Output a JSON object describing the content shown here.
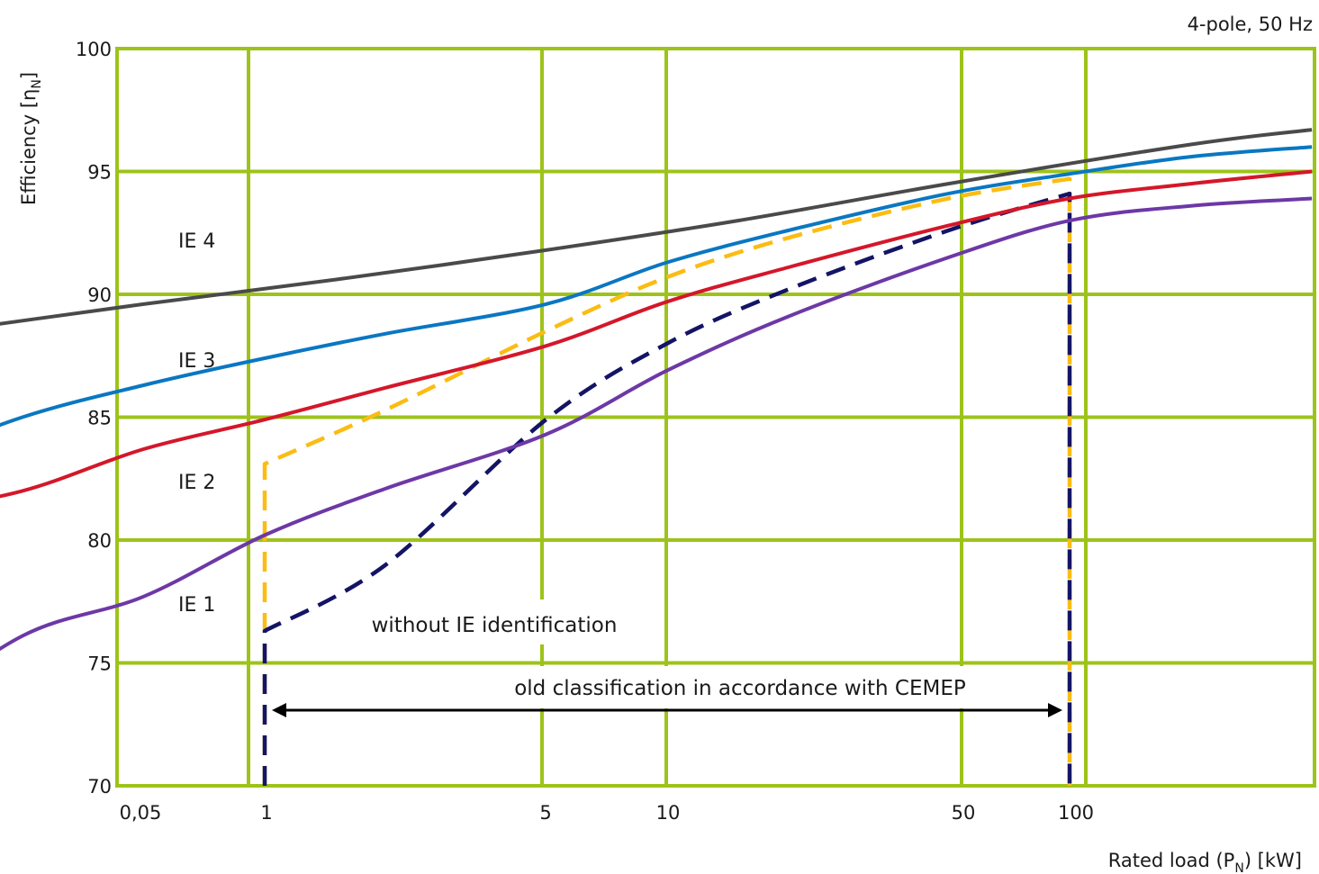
{
  "chart_data": {
    "type": "line",
    "subtitle": "4-pole, 50 Hz",
    "ylabel_main": "Efficiency [η",
    "ylabel_sub": "N",
    "ylabel_end": "]",
    "xlabel_main": "Rated load (P",
    "xlabel_sub": "N",
    "xlabel_end": ") [kW]",
    "x_scale": "log",
    "xlim": [
      0.05,
      700
    ],
    "ylim": [
      70,
      100
    ],
    "grid": true,
    "x_ticks": [
      0.05,
      1,
      5,
      10,
      50,
      100
    ],
    "x_tick_labels": [
      "0,05",
      "1",
      "5",
      "10",
      "50",
      "100"
    ],
    "y_ticks": [
      70,
      75,
      80,
      85,
      90,
      95,
      100
    ],
    "y_tick_labels": [
      "70",
      "75",
      "80",
      "85",
      "90",
      "95",
      "100"
    ],
    "class_labels": [
      "IE 4",
      "IE 3",
      "IE 2",
      "IE 1"
    ],
    "annotations": {
      "without_ie": "without IE identification",
      "old_classification": "old classification in accordance with CEMEP"
    },
    "colors": {
      "grid": "#9dc31a",
      "IE4": "#4a4a4a",
      "IE3": "#0a77c2",
      "IE2": "#d4172a",
      "IE1": "#6d38a6",
      "old_upper": "#fbbc13",
      "old_lower": "#141466",
      "arrow": "#000000"
    },
    "series": [
      {
        "id": "IE4",
        "style": "solid",
        "x": [
          0.12,
          0.5,
          1.5,
          5,
          15,
          50,
          200,
          400
        ],
        "y": [
          88.2,
          89.6,
          90.6,
          91.8,
          93.0,
          94.5,
          96.1,
          96.7
        ]
      },
      {
        "id": "IE3",
        "style": "solid",
        "x": [
          0.12,
          0.25,
          0.5,
          1,
          2,
          5,
          10,
          20,
          50,
          100,
          200,
          400
        ],
        "y": [
          83.0,
          85.0,
          86.3,
          87.4,
          88.4,
          89.6,
          91.3,
          92.6,
          94.1,
          94.9,
          95.6,
          96.0
        ]
      },
      {
        "id": "IE2",
        "style": "solid",
        "x": [
          0.12,
          0.25,
          0.5,
          1,
          2,
          5,
          10,
          20,
          50,
          100,
          200,
          400
        ],
        "y": [
          81.0,
          82.0,
          83.7,
          84.9,
          86.2,
          87.9,
          89.7,
          91.1,
          92.8,
          93.9,
          94.5,
          95.0
        ]
      },
      {
        "id": "IE1",
        "style": "solid",
        "x": [
          0.12,
          0.25,
          0.5,
          1,
          2,
          5,
          10,
          20,
          50,
          100,
          200,
          400
        ],
        "y": [
          72.5,
          76.1,
          77.7,
          80.2,
          82.1,
          84.3,
          86.9,
          89.1,
          91.5,
          93.0,
          93.6,
          93.9
        ]
      },
      {
        "id": "old_upper",
        "style": "dashed",
        "x": [
          1,
          1,
          2,
          5,
          10,
          20,
          50,
          100,
          100
        ],
        "y": [
          70,
          83.1,
          85.3,
          88.5,
          90.7,
          92.3,
          93.9,
          94.7,
          70
        ]
      },
      {
        "id": "old_lower",
        "style": "dashed",
        "x": [
          1,
          1,
          2,
          5,
          10,
          20,
          50,
          100,
          100
        ],
        "y": [
          70,
          76.3,
          79.0,
          84.9,
          88.0,
          90.2,
          92.6,
          94.1,
          70
        ]
      }
    ],
    "arrow_range": [
      1,
      100
    ]
  }
}
